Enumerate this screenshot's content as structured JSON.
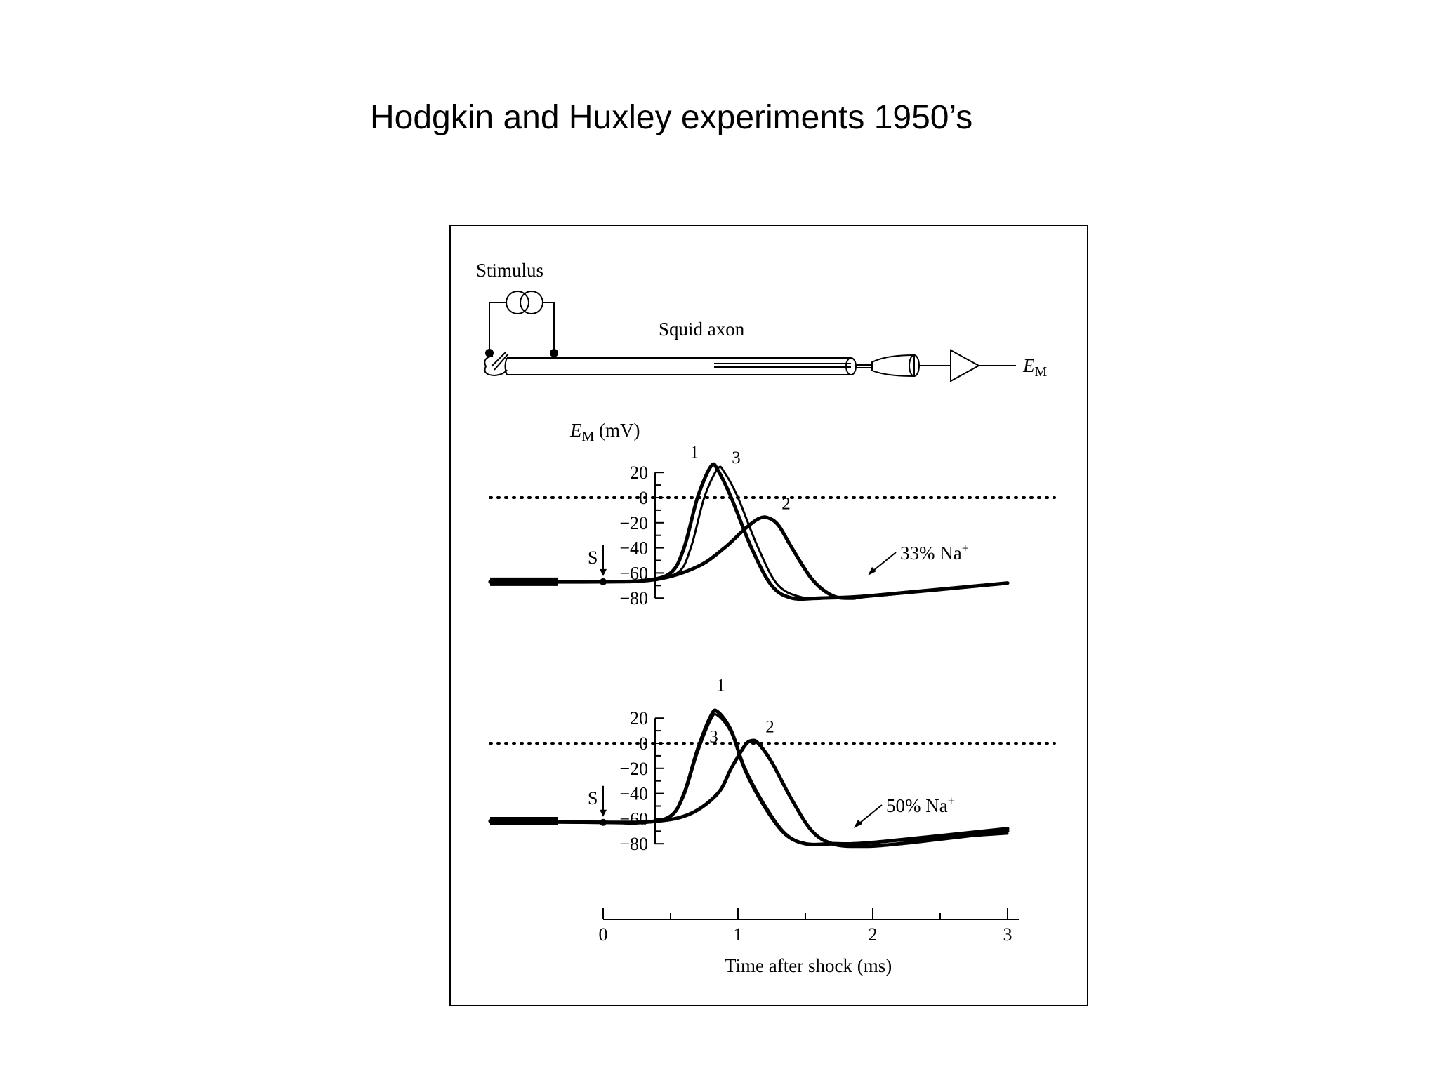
{
  "slide": {
    "title": "Hodgkin and Huxley experiments 1950’s"
  },
  "apparatus": {
    "stimulus_label": "Stimulus",
    "axon_label": "Squid axon",
    "output_label_main": "E",
    "output_label_sub": "M"
  },
  "chart_data": [
    {
      "type": "line",
      "condition_label": "33% Na",
      "condition_superscript": "+",
      "ylabel_main": "E",
      "ylabel_sub": "M",
      "ylabel_unit": " (mV)",
      "ylim": [
        -80,
        20
      ],
      "yticks": [
        20,
        0,
        -20,
        -40,
        -60,
        -80
      ],
      "stimulus_marker": "S",
      "reference_line_y": 0,
      "series": [
        {
          "name": "1",
          "x": [
            -0.75,
            0,
            0.3,
            0.5,
            0.6,
            0.7,
            0.8,
            0.85,
            0.95,
            1.1,
            1.25,
            1.4,
            1.6,
            2.0,
            3.0
          ],
          "y": [
            -67,
            -67,
            -66,
            -60,
            -40,
            0,
            25,
            22,
            0,
            -40,
            -70,
            -80,
            -80,
            -78,
            -68
          ]
        },
        {
          "name": "3",
          "x": [
            -0.75,
            0,
            0.3,
            0.55,
            0.65,
            0.75,
            0.85,
            0.9,
            1.0,
            1.15,
            1.3,
            1.5,
            1.7,
            2.0,
            3.0
          ],
          "y": [
            -67,
            -67,
            -66,
            -60,
            -40,
            0,
            23,
            20,
            0,
            -40,
            -70,
            -80,
            -80,
            -78,
            -68
          ]
        },
        {
          "name": "2",
          "x": [
            -0.75,
            0,
            0.4,
            0.7,
            0.9,
            1.05,
            1.15,
            1.22,
            1.3,
            1.4,
            1.55,
            1.7,
            1.85,
            2.0,
            3.0
          ],
          "y": [
            -67,
            -67,
            -65,
            -55,
            -40,
            -25,
            -17,
            -16,
            -22,
            -40,
            -65,
            -78,
            -80,
            -78,
            -68
          ]
        }
      ]
    },
    {
      "type": "line",
      "condition_label": "50% Na",
      "condition_superscript": "+",
      "ylim": [
        -80,
        20
      ],
      "yticks": [
        20,
        0,
        -20,
        -40,
        -60,
        -80
      ],
      "stimulus_marker": "S",
      "reference_line_y": 0,
      "series": [
        {
          "name": "1",
          "x": [
            -0.75,
            0,
            0.3,
            0.5,
            0.6,
            0.7,
            0.8,
            0.85,
            0.95,
            1.05,
            1.2,
            1.35,
            1.5,
            1.7,
            2.0,
            3.0
          ],
          "y": [
            -62,
            -63,
            -63,
            -58,
            -40,
            -5,
            22,
            25,
            10,
            -20,
            -50,
            -72,
            -80,
            -80,
            -79,
            -68
          ]
        },
        {
          "name": "3",
          "x": [
            -0.75,
            0,
            0.3,
            0.5,
            0.6,
            0.7,
            0.8,
            0.85,
            0.95,
            1.05,
            1.2,
            1.35,
            1.5,
            1.7,
            2.0,
            3.0
          ],
          "y": [
            -62,
            -63,
            -63,
            -58,
            -42,
            -8,
            19,
            22,
            8,
            -22,
            -52,
            -73,
            -80,
            -80,
            -79,
            -72
          ]
        },
        {
          "name": "2",
          "x": [
            -0.75,
            0,
            0.4,
            0.65,
            0.85,
            0.95,
            1.05,
            1.1,
            1.15,
            1.25,
            1.4,
            1.55,
            1.7,
            1.9,
            2.2,
            3.0
          ],
          "y": [
            -62,
            -63,
            -62,
            -56,
            -40,
            -20,
            -2,
            2,
            0,
            -15,
            -45,
            -70,
            -80,
            -82,
            -80,
            -70
          ]
        }
      ]
    }
  ],
  "time_axis": {
    "xlabel": "Time after shock (ms)",
    "xlim": [
      0,
      3
    ],
    "xticks": [
      0,
      1,
      2,
      3
    ]
  }
}
